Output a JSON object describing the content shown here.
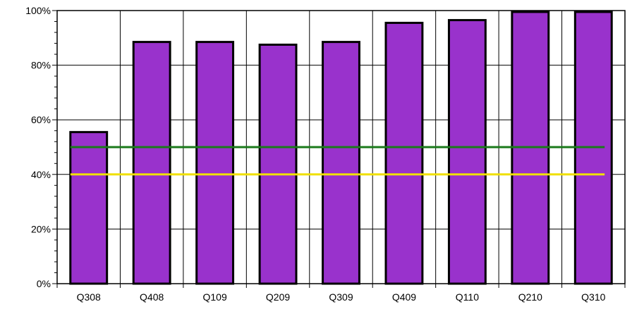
{
  "chart_data": {
    "type": "bar",
    "title": "",
    "xlabel": "",
    "ylabel": "",
    "categories": [
      "Q308",
      "Q408",
      "Q109",
      "Q209",
      "Q309",
      "Q409",
      "Q110",
      "Q210",
      "Q310"
    ],
    "values": [
      55.5,
      88.5,
      88.5,
      87.5,
      88.5,
      95.5,
      96.5,
      99.5,
      99.5
    ],
    "ylim": [
      0,
      100
    ],
    "y_ticks": [
      0,
      20,
      40,
      60,
      80,
      100
    ],
    "y_tick_labels": [
      "0%",
      "20%",
      "40%",
      "60%",
      "80%",
      "100%"
    ],
    "grid": true,
    "reference_lines": [
      {
        "value": 50,
        "color": "#1a7a1a"
      },
      {
        "value": 40,
        "color": "#f0e000"
      }
    ],
    "colors": {
      "bar_fill": "#9932cc",
      "bar_stroke": "#000000",
      "grid": "#000000"
    }
  }
}
